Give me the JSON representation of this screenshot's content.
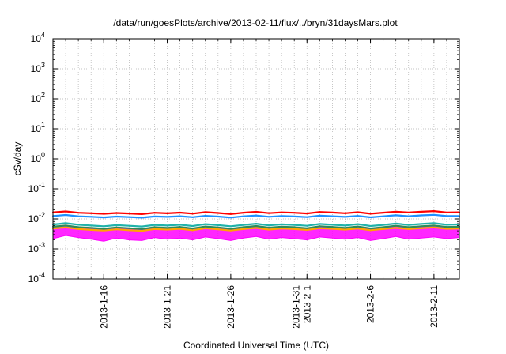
{
  "chart_data": {
    "type": "line",
    "title": "/data/run/goesPlots/archive/2013-02-11/flux/../bryn/31daysMars.plot",
    "xlabel": "Coordinated Universal Time (UTC)",
    "ylabel": "cSv/day",
    "yscale": "log",
    "ylim": [
      0.0001,
      10000
    ],
    "xlim": [
      "2013-01-12",
      "2013-02-13"
    ],
    "grid": true,
    "y_ticks": [
      {
        "value": 0.0001,
        "base": "10",
        "exp": "-4"
      },
      {
        "value": 0.001,
        "base": "10",
        "exp": "-3"
      },
      {
        "value": 0.01,
        "base": "10",
        "exp": "-2"
      },
      {
        "value": 0.1,
        "base": "10",
        "exp": "-1"
      },
      {
        "value": 1,
        "base": "10",
        "exp": "0"
      },
      {
        "value": 10,
        "base": "10",
        "exp": "1"
      },
      {
        "value": 100,
        "base": "10",
        "exp": "2"
      },
      {
        "value": 1000,
        "base": "10",
        "exp": "3"
      },
      {
        "value": 10000,
        "base": "10",
        "exp": "4"
      }
    ],
    "x_ticks": [
      {
        "date": "2013-01-16",
        "lines": [
          "2013-1-16"
        ]
      },
      {
        "date": "2013-01-21",
        "lines": [
          "2013-1-21"
        ]
      },
      {
        "date": "2013-01-26",
        "lines": [
          "2013-1-26"
        ]
      },
      {
        "date": "2013-02-01",
        "lines": [
          "2013-1-31",
          "2013-2-1"
        ]
      },
      {
        "date": "2013-02-06",
        "lines": [
          "2013-2-6"
        ]
      },
      {
        "date": "2013-02-11",
        "lines": [
          "2013-2-11"
        ]
      }
    ],
    "series": [
      {
        "color": "#ff00ff",
        "band": true,
        "x": [
          "2013-01-12",
          "2013-01-13",
          "2013-01-14",
          "2013-01-15",
          "2013-01-16",
          "2013-01-17",
          "2013-01-18",
          "2013-01-19",
          "2013-01-20",
          "2013-01-21",
          "2013-01-22",
          "2013-01-23",
          "2013-01-24",
          "2013-01-25",
          "2013-01-26",
          "2013-01-27",
          "2013-01-28",
          "2013-01-29",
          "2013-01-30",
          "2013-01-31",
          "2013-02-01",
          "2013-02-02",
          "2013-02-03",
          "2013-02-04",
          "2013-02-05",
          "2013-02-06",
          "2013-02-07",
          "2013-02-08",
          "2013-02-09",
          "2013-02-10",
          "2013-02-11",
          "2013-02-12",
          "2013-02-13"
        ],
        "low": [
          0.0022,
          0.0028,
          0.0024,
          0.0021,
          0.0018,
          0.0023,
          0.002,
          0.0019,
          0.0024,
          0.0021,
          0.0023,
          0.002,
          0.0025,
          0.0022,
          0.0019,
          0.0023,
          0.0026,
          0.0021,
          0.0024,
          0.0022,
          0.002,
          0.0025,
          0.0023,
          0.0021,
          0.0024,
          0.0019,
          0.0022,
          0.0026,
          0.0021,
          0.0023,
          0.0025,
          0.0022,
          0.0024
        ],
        "high": [
          0.0055,
          0.006,
          0.0052,
          0.0048,
          0.0045,
          0.005,
          0.0047,
          0.0044,
          0.0051,
          0.0049,
          0.0053,
          0.0046,
          0.0055,
          0.005,
          0.0045,
          0.0052,
          0.0058,
          0.0049,
          0.0054,
          0.0051,
          0.0047,
          0.0056,
          0.0053,
          0.0049,
          0.0055,
          0.0046,
          0.0051,
          0.0058,
          0.0052,
          0.0057,
          0.006,
          0.0053,
          0.0055
        ]
      },
      {
        "color": "#ffa500",
        "x": [
          "2013-01-12",
          "2013-01-13",
          "2013-01-14",
          "2013-01-15",
          "2013-01-16",
          "2013-01-17",
          "2013-01-18",
          "2013-01-19",
          "2013-01-20",
          "2013-01-21",
          "2013-01-22",
          "2013-01-23",
          "2013-01-24",
          "2013-01-25",
          "2013-01-26",
          "2013-01-27",
          "2013-01-28",
          "2013-01-29",
          "2013-01-30",
          "2013-01-31",
          "2013-02-01",
          "2013-02-02",
          "2013-02-03",
          "2013-02-04",
          "2013-02-05",
          "2013-02-06",
          "2013-02-07",
          "2013-02-08",
          "2013-02-09",
          "2013-02-10",
          "2013-02-11",
          "2013-02-12",
          "2013-02-13"
        ],
        "values": [
          0.0048,
          0.0052,
          0.0046,
          0.0043,
          0.0041,
          0.0045,
          0.0042,
          0.004,
          0.0046,
          0.0044,
          0.0047,
          0.0042,
          0.0049,
          0.0045,
          0.0041,
          0.0046,
          0.005,
          0.0044,
          0.0048,
          0.0046,
          0.0043,
          0.0049,
          0.0047,
          0.0044,
          0.0048,
          0.0042,
          0.0046,
          0.005,
          0.0046,
          0.0049,
          0.0052,
          0.0047,
          0.0048
        ]
      },
      {
        "color": "#2e8b57",
        "x": [
          "2013-01-12",
          "2013-01-13",
          "2013-01-14",
          "2013-01-15",
          "2013-01-16",
          "2013-01-17",
          "2013-01-18",
          "2013-01-19",
          "2013-01-20",
          "2013-01-21",
          "2013-01-22",
          "2013-01-23",
          "2013-01-24",
          "2013-01-25",
          "2013-01-26",
          "2013-01-27",
          "2013-01-28",
          "2013-01-29",
          "2013-01-30",
          "2013-01-31",
          "2013-02-01",
          "2013-02-02",
          "2013-02-03",
          "2013-02-04",
          "2013-02-05",
          "2013-02-06",
          "2013-02-07",
          "2013-02-08",
          "2013-02-09",
          "2013-02-10",
          "2013-02-11",
          "2013-02-12",
          "2013-02-13"
        ],
        "values": [
          0.0055,
          0.006,
          0.0053,
          0.005,
          0.0047,
          0.0052,
          0.0049,
          0.0046,
          0.0053,
          0.005,
          0.0054,
          0.0048,
          0.0056,
          0.0052,
          0.0047,
          0.0053,
          0.0058,
          0.0051,
          0.0055,
          0.0053,
          0.0049,
          0.0057,
          0.0054,
          0.005,
          0.0056,
          0.0048,
          0.0053,
          0.0059,
          0.0053,
          0.0057,
          0.006,
          0.0054,
          0.0055
        ]
      },
      {
        "color": "#20b2aa",
        "x": [
          "2013-01-12",
          "2013-01-13",
          "2013-01-14",
          "2013-01-15",
          "2013-01-16",
          "2013-01-17",
          "2013-01-18",
          "2013-01-19",
          "2013-01-20",
          "2013-01-21",
          "2013-01-22",
          "2013-01-23",
          "2013-01-24",
          "2013-01-25",
          "2013-01-26",
          "2013-01-27",
          "2013-01-28",
          "2013-01-29",
          "2013-01-30",
          "2013-01-31",
          "2013-02-01",
          "2013-02-02",
          "2013-02-03",
          "2013-02-04",
          "2013-02-05",
          "2013-02-06",
          "2013-02-07",
          "2013-02-08",
          "2013-02-09",
          "2013-02-10",
          "2013-02-11",
          "2013-02-12",
          "2013-02-13"
        ],
        "values": [
          0.0065,
          0.0072,
          0.0064,
          0.006,
          0.0057,
          0.0062,
          0.0059,
          0.0056,
          0.0063,
          0.006,
          0.0064,
          0.0058,
          0.0067,
          0.0062,
          0.0057,
          0.0063,
          0.0069,
          0.0061,
          0.0066,
          0.0063,
          0.0059,
          0.0068,
          0.0064,
          0.006,
          0.0067,
          0.0058,
          0.0063,
          0.007,
          0.0063,
          0.0068,
          0.0072,
          0.0064,
          0.0066
        ]
      },
      {
        "color": "#1e90ff",
        "x": [
          "2013-01-12",
          "2013-01-13",
          "2013-01-14",
          "2013-01-15",
          "2013-01-16",
          "2013-01-17",
          "2013-01-18",
          "2013-01-19",
          "2013-01-20",
          "2013-01-21",
          "2013-01-22",
          "2013-01-23",
          "2013-01-24",
          "2013-01-25",
          "2013-01-26",
          "2013-01-27",
          "2013-01-28",
          "2013-01-29",
          "2013-01-30",
          "2013-01-31",
          "2013-02-01",
          "2013-02-02",
          "2013-02-03",
          "2013-02-04",
          "2013-02-05",
          "2013-02-06",
          "2013-02-07",
          "2013-02-08",
          "2013-02-09",
          "2013-02-10",
          "2013-02-11",
          "2013-02-12",
          "2013-02-13"
        ],
        "values": [
          0.0125,
          0.0135,
          0.0122,
          0.0118,
          0.0112,
          0.012,
          0.0115,
          0.011,
          0.0121,
          0.0117,
          0.0123,
          0.0114,
          0.0127,
          0.012,
          0.0111,
          0.0122,
          0.013,
          0.0118,
          0.0125,
          0.0121,
          0.0115,
          0.0128,
          0.0123,
          0.0117,
          0.0126,
          0.0113,
          0.0122,
          0.0132,
          0.0123,
          0.0131,
          0.0137,
          0.0124,
          0.0125
        ]
      },
      {
        "color": "#ff0000",
        "x": [
          "2013-01-12",
          "2013-01-13",
          "2013-01-14",
          "2013-01-15",
          "2013-01-16",
          "2013-01-17",
          "2013-01-18",
          "2013-01-19",
          "2013-01-20",
          "2013-01-21",
          "2013-01-22",
          "2013-01-23",
          "2013-01-24",
          "2013-01-25",
          "2013-01-26",
          "2013-01-27",
          "2013-01-28",
          "2013-01-29",
          "2013-01-30",
          "2013-01-31",
          "2013-02-01",
          "2013-02-02",
          "2013-02-03",
          "2013-02-04",
          "2013-02-05",
          "2013-02-06",
          "2013-02-07",
          "2013-02-08",
          "2013-02-09",
          "2013-02-10",
          "2013-02-11",
          "2013-02-12",
          "2013-02-13"
        ],
        "values": [
          0.0165,
          0.0178,
          0.016,
          0.0155,
          0.0148,
          0.0158,
          0.0152,
          0.0145,
          0.016,
          0.0154,
          0.0162,
          0.015,
          0.0168,
          0.0158,
          0.0146,
          0.0161,
          0.0172,
          0.0156,
          0.0165,
          0.016,
          0.0152,
          0.017,
          0.0163,
          0.0155,
          0.0167,
          0.0149,
          0.0161,
          0.0175,
          0.0163,
          0.0174,
          0.0182,
          0.0164,
          0.0166
        ]
      }
    ]
  }
}
